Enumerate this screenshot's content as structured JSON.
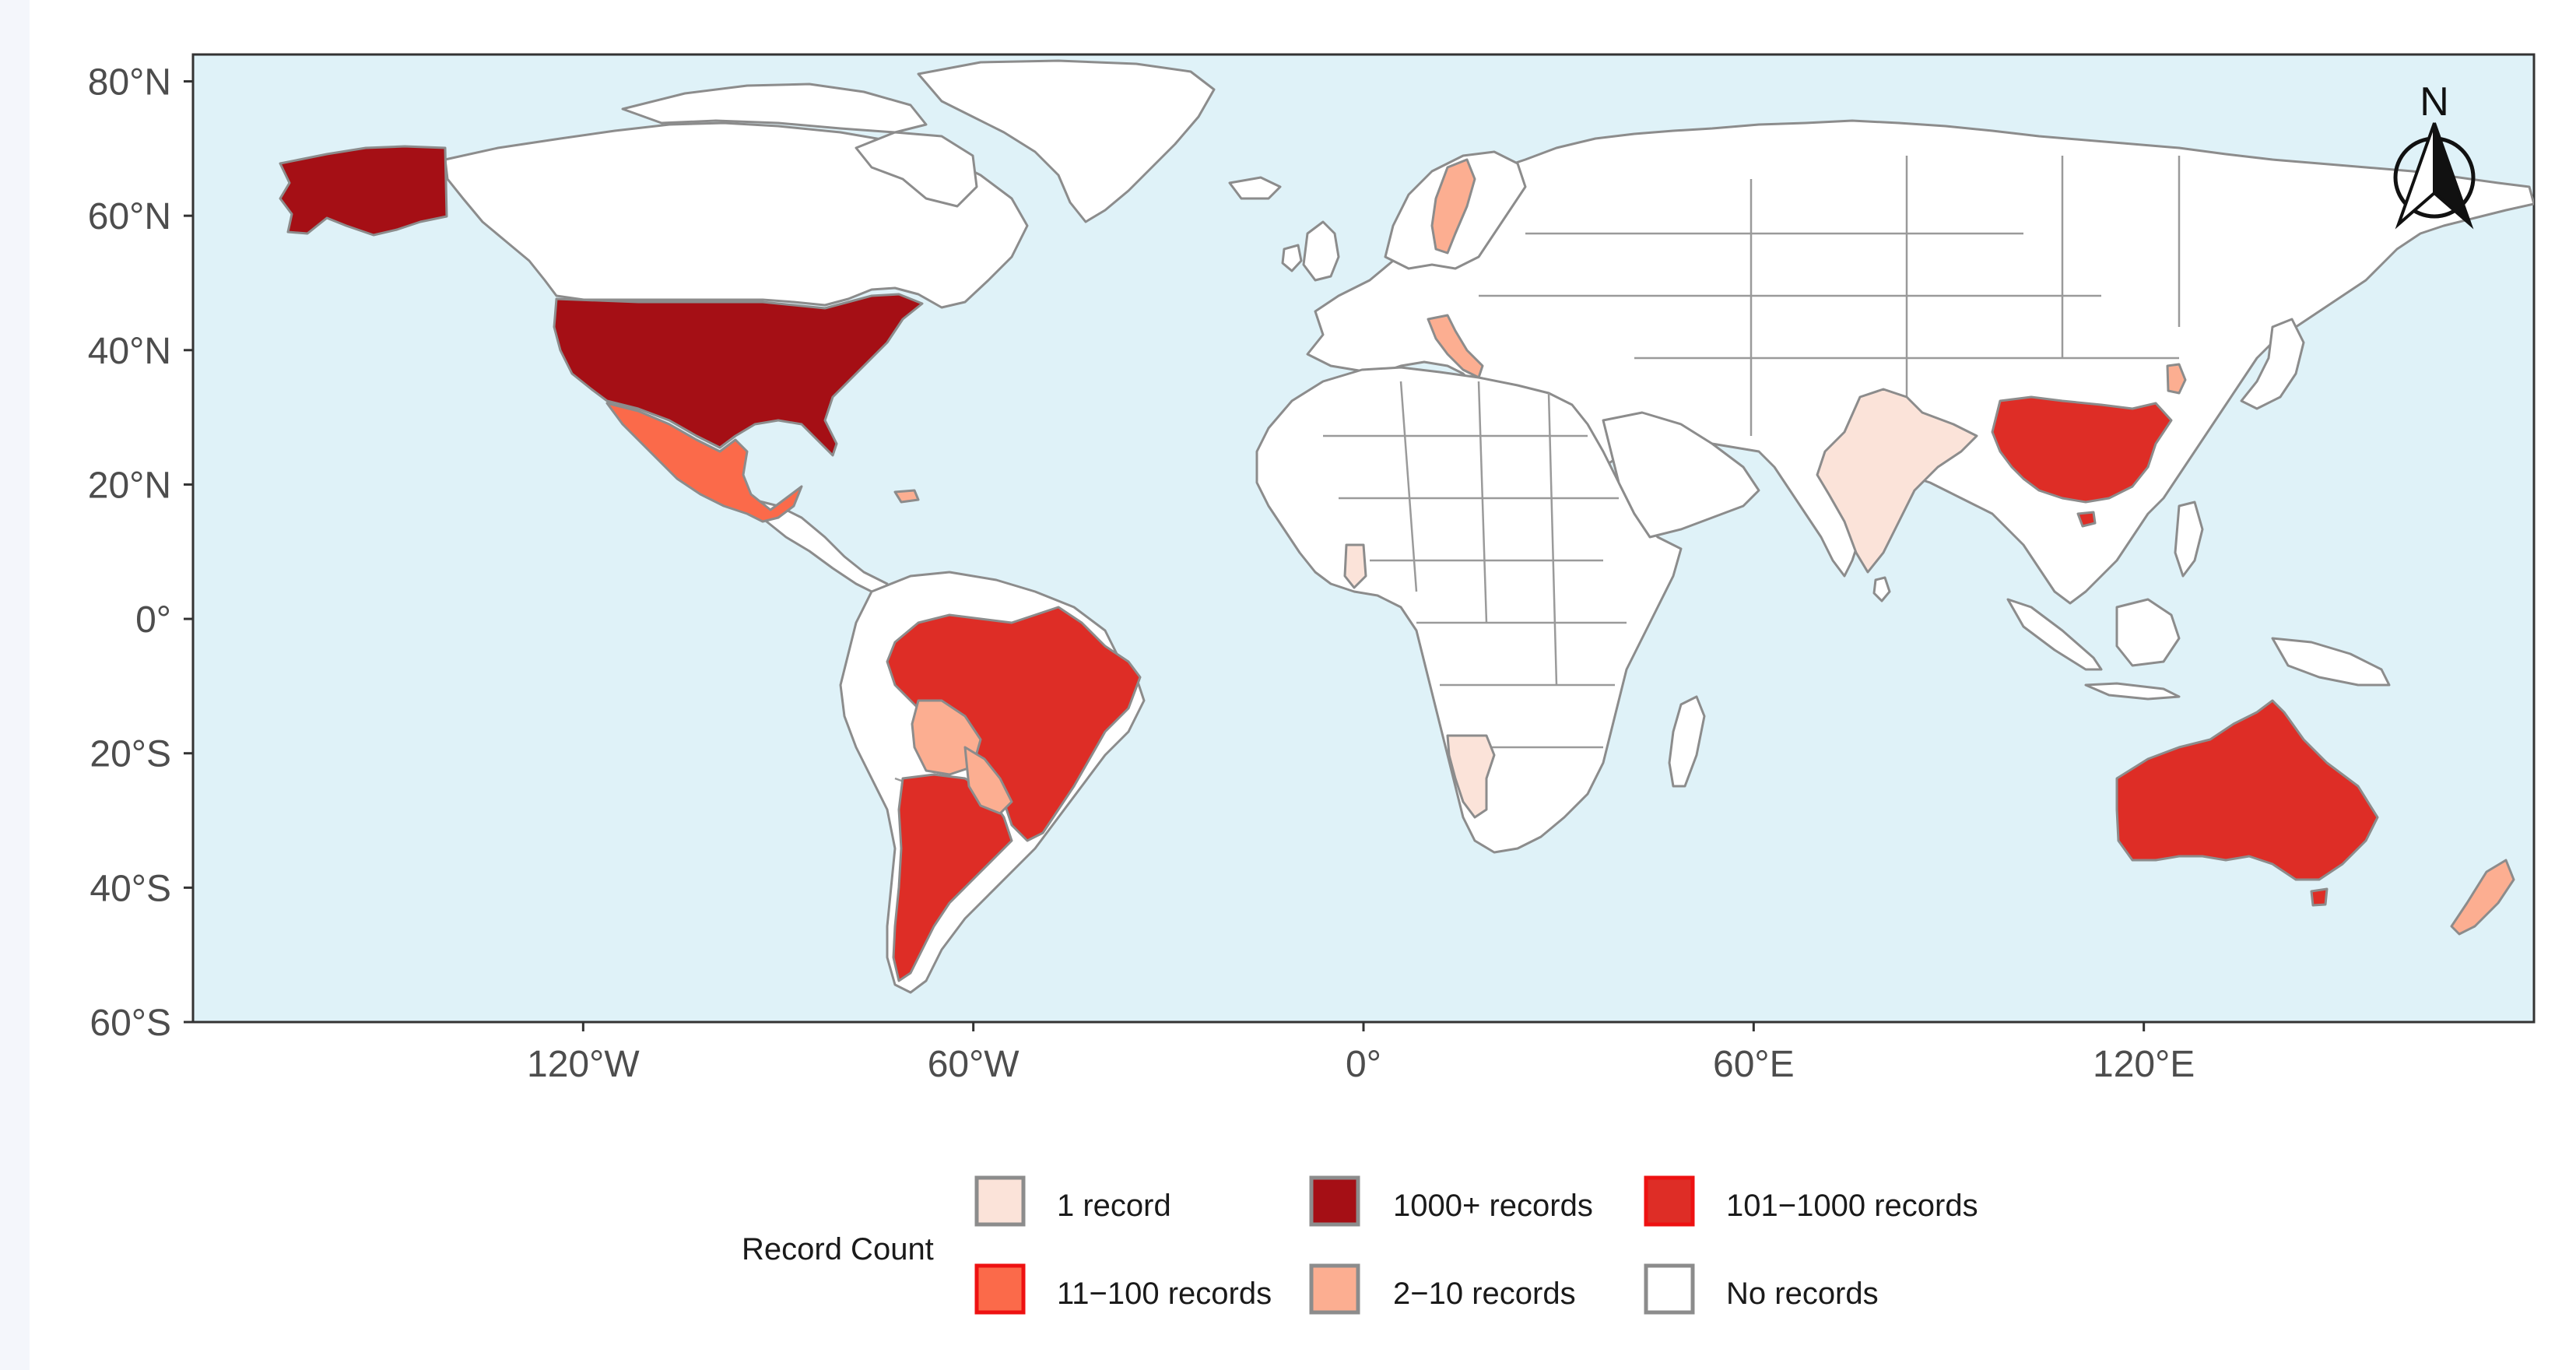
{
  "map": {
    "title": "",
    "projection": "equirectangular",
    "lon_range": [
      -180,
      180
    ],
    "lat_range": [
      -60,
      84
    ],
    "ocean_color": "#dff2f8",
    "land_default_color": "#ffffff",
    "border_color": "#8c8c8c",
    "north_arrow_label": "N",
    "y_axis": {
      "ticks": [
        {
          "value": 80,
          "label": "80°N"
        },
        {
          "value": 60,
          "label": "60°N"
        },
        {
          "value": 40,
          "label": "40°N"
        },
        {
          "value": 20,
          "label": "20°N"
        },
        {
          "value": 0,
          "label": "0°"
        },
        {
          "value": -20,
          "label": "20°S"
        },
        {
          "value": -40,
          "label": "40°S"
        },
        {
          "value": -60,
          "label": "60°S"
        }
      ]
    },
    "x_axis": {
      "ticks": [
        {
          "value": -120,
          "label": "120°W"
        },
        {
          "value": -60,
          "label": "60°W"
        },
        {
          "value": 0,
          "label": "0°"
        },
        {
          "value": 60,
          "label": "60°E"
        },
        {
          "value": 120,
          "label": "120°E"
        }
      ]
    }
  },
  "legend": {
    "title": "Record Count",
    "categories": {
      "one": {
        "label": "1 record",
        "fill": "#fbe3d9",
        "stroke": "#8c8c8c"
      },
      "thousand_plus": {
        "label": "1000+ records",
        "fill": "#a50f15",
        "stroke": "#8c8c8c"
      },
      "hundred_thousand": {
        "label": "101−1000 records",
        "fill": "#de2d26",
        "stroke": "#ee1111"
      },
      "eleven_hundred": {
        "label": "11−100 records",
        "fill": "#fb6a4a",
        "stroke": "#ee1111"
      },
      "two_ten": {
        "label": "2−10 records",
        "fill": "#fcae91",
        "stroke": "#8c8c8c"
      },
      "none": {
        "label": "No records",
        "fill": "#ffffff",
        "stroke": "#8c8c8c"
      }
    }
  },
  "chart_data": {
    "type": "choropleth",
    "variable": "Record Count",
    "regions": [
      {
        "name": "United States",
        "category": "1000+ records"
      },
      {
        "name": "Alaska",
        "category": "1000+ records"
      },
      {
        "name": "Mexico",
        "category": "11−100 records"
      },
      {
        "name": "Brazil",
        "category": "101−1000 records"
      },
      {
        "name": "Argentina",
        "category": "101−1000 records"
      },
      {
        "name": "Bolivia",
        "category": "2−10 records"
      },
      {
        "name": "Paraguay",
        "category": "2−10 records"
      },
      {
        "name": "China",
        "category": "101−1000 records"
      },
      {
        "name": "Australia",
        "category": "101−1000 records"
      },
      {
        "name": "Sweden",
        "category": "2−10 records"
      },
      {
        "name": "Italy",
        "category": "2−10 records"
      },
      {
        "name": "South Korea",
        "category": "2−10 records"
      },
      {
        "name": "New Zealand",
        "category": "2−10 records"
      },
      {
        "name": "Dominican Republic",
        "category": "2−10 records"
      },
      {
        "name": "India",
        "category": "1 record"
      },
      {
        "name": "Ghana",
        "category": "1 record"
      },
      {
        "name": "Namibia",
        "category": "1 record"
      }
    ]
  }
}
